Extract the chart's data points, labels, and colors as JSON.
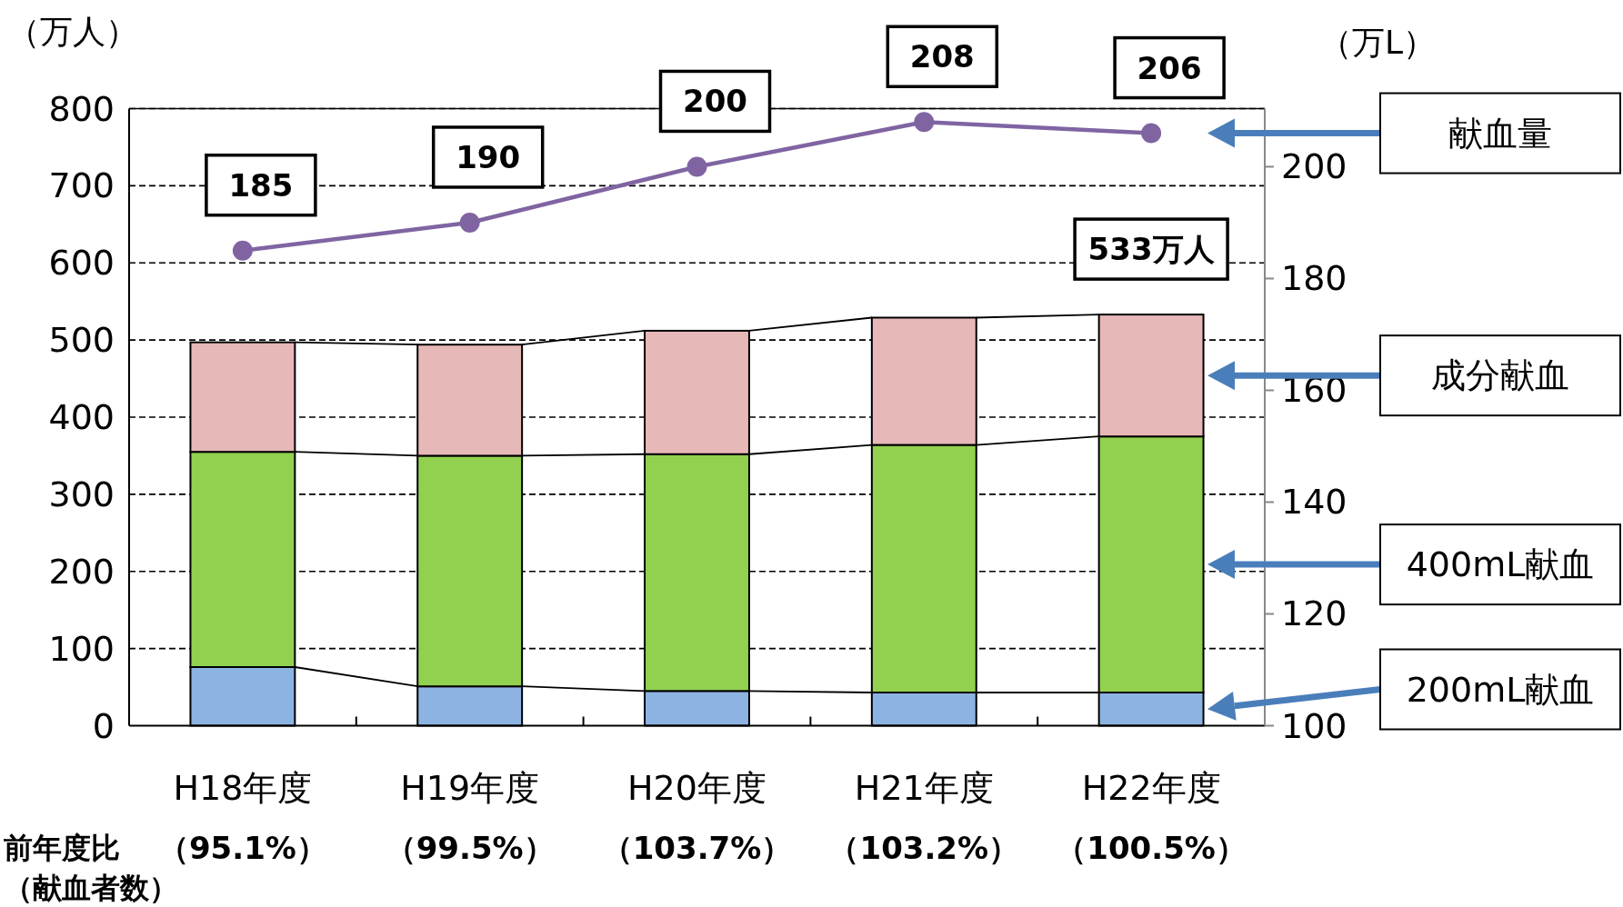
{
  "chart_data": {
    "type": "bar",
    "stacked": true,
    "ylabel": "（万人）",
    "y2label": "（万L）",
    "categories": [
      "H18年度",
      "H19年度",
      "H20年度",
      "H21年度",
      "H22年度"
    ],
    "series": [
      {
        "name": "200mL献血",
        "color": "#8db3e2",
        "values": [
          76,
          51,
          45,
          43,
          43
        ]
      },
      {
        "name": "400mL献血",
        "color": "#92d050",
        "values": [
          279,
          299,
          307,
          321,
          332
        ]
      },
      {
        "name": "成分献血",
        "color": "#e6b8b7",
        "values": [
          142,
          144,
          160,
          165,
          158
        ]
      },
      {
        "name": "献血量",
        "type": "line",
        "axis": "y2",
        "color": "#8064a2",
        "marker": "circle",
        "data_labels": true,
        "values": [
          185,
          190,
          200,
          208,
          206
        ]
      }
    ],
    "ylim": [
      0,
      800
    ],
    "yticks": [
      0,
      100,
      200,
      300,
      400,
      500,
      600,
      700,
      800
    ],
    "y2lim": [
      100,
      210.4
    ],
    "y2ticks": [
      100,
      120,
      140,
      160,
      180,
      200
    ],
    "grid": "y",
    "annotations": [
      {
        "text": "533万人",
        "x": "H22年度",
        "y": 533
      },
      "前年度比（献血者数）",
      "（95.1%）",
      "（99.5%）",
      "（103.7%）",
      "（103.2%）",
      "（100.5%）"
    ]
  }
}
